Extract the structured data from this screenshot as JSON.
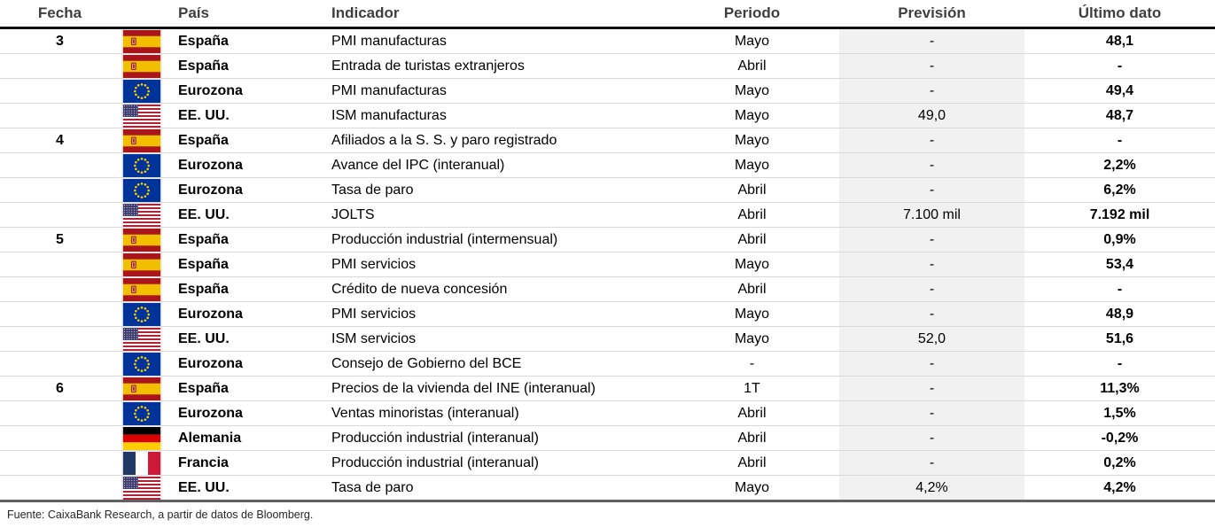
{
  "header": {
    "columns": [
      "Fecha",
      "País",
      "Indicador",
      "Periodo",
      "Previsión",
      "Último dato"
    ]
  },
  "rows": [
    {
      "fecha": "3",
      "flag": "es",
      "pais": "España",
      "indicador": "PMI manufacturas",
      "periodo": "Mayo",
      "prevision": "-",
      "ultimo_dato": "48,1"
    },
    {
      "fecha": "",
      "flag": "es",
      "pais": "España",
      "indicador": "Entrada de turistas extranjeros",
      "periodo": "Abril",
      "prevision": "-",
      "ultimo_dato": "-"
    },
    {
      "fecha": "",
      "flag": "eu",
      "pais": "Eurozona",
      "indicador": "PMI manufacturas",
      "periodo": "Mayo",
      "prevision": "-",
      "ultimo_dato": "49,4"
    },
    {
      "fecha": "",
      "flag": "us",
      "pais": "EE. UU.",
      "indicador": "ISM manufacturas",
      "periodo": "Mayo",
      "prevision": "49,0",
      "ultimo_dato": "48,7"
    },
    {
      "fecha": "4",
      "flag": "es",
      "pais": "España",
      "indicador": "Afiliados a la S. S. y paro registrado",
      "periodo": "Mayo",
      "prevision": "-",
      "ultimo_dato": "-"
    },
    {
      "fecha": "",
      "flag": "eu",
      "pais": "Eurozona",
      "indicador": "Avance del IPC (interanual)",
      "periodo": "Mayo",
      "prevision": "-",
      "ultimo_dato": "2,2%"
    },
    {
      "fecha": "",
      "flag": "eu",
      "pais": "Eurozona",
      "indicador": "Tasa de paro",
      "periodo": "Abril",
      "prevision": "-",
      "ultimo_dato": "6,2%"
    },
    {
      "fecha": "",
      "flag": "us",
      "pais": "EE. UU.",
      "indicador": "JOLTS",
      "periodo": "Abril",
      "prevision": "7.100 mil",
      "ultimo_dato": "7.192 mil"
    },
    {
      "fecha": "5",
      "flag": "es",
      "pais": "España",
      "indicador": "Producción industrial (intermensual)",
      "periodo": "Abril",
      "prevision": "-",
      "ultimo_dato": "0,9%"
    },
    {
      "fecha": "",
      "flag": "es",
      "pais": "España",
      "indicador": "PMI servicios",
      "periodo": "Mayo",
      "prevision": "-",
      "ultimo_dato": "53,4"
    },
    {
      "fecha": "",
      "flag": "es",
      "pais": "España",
      "indicador": "Crédito de nueva concesión",
      "periodo": "Abril",
      "prevision": "-",
      "ultimo_dato": "-"
    },
    {
      "fecha": "",
      "flag": "eu",
      "pais": "Eurozona",
      "indicador": "PMI servicios",
      "periodo": "Mayo",
      "prevision": "-",
      "ultimo_dato": "48,9"
    },
    {
      "fecha": "",
      "flag": "us",
      "pais": "EE. UU.",
      "indicador": "ISM servicios",
      "periodo": "Mayo",
      "prevision": "52,0",
      "ultimo_dato": "51,6"
    },
    {
      "fecha": "",
      "flag": "eu",
      "pais": "Eurozona",
      "indicador": "Consejo de Gobierno del BCE",
      "periodo": "-",
      "prevision": "-",
      "ultimo_dato": "-"
    },
    {
      "fecha": "6",
      "flag": "es",
      "pais": "España",
      "indicador": "Precios de la vivienda del INE (interanual)",
      "periodo": "1T",
      "prevision": "-",
      "ultimo_dato": "11,3%"
    },
    {
      "fecha": "",
      "flag": "eu",
      "pais": "Eurozona",
      "indicador": "Ventas minoristas (interanual)",
      "periodo": "Abril",
      "prevision": "-",
      "ultimo_dato": "1,5%"
    },
    {
      "fecha": "",
      "flag": "de",
      "pais": "Alemania",
      "indicador": "Producción industrial (interanual)",
      "periodo": "Abril",
      "prevision": "-",
      "ultimo_dato": "-0,2%"
    },
    {
      "fecha": "",
      "flag": "fr",
      "pais": "Francia",
      "indicador": "Producción industrial (interanual)",
      "periodo": "Abril",
      "prevision": "-",
      "ultimo_dato": "0,2%"
    },
    {
      "fecha": "",
      "flag": "us",
      "pais": "EE. UU.",
      "indicador": "Tasa de paro",
      "periodo": "Mayo",
      "prevision": "4,2%",
      "ultimo_dato": "4,2%"
    }
  ],
  "footer": {
    "source": "Fuente: CaixaBank Research, a partir de datos de Bloomberg."
  },
  "colors": {
    "prevision_column_bg": "#f1f1f1",
    "header_text": "#3f3f3f",
    "row_divider": "#d9d9d9",
    "header_rule": "#111111",
    "bottom_rule": "#616161"
  }
}
